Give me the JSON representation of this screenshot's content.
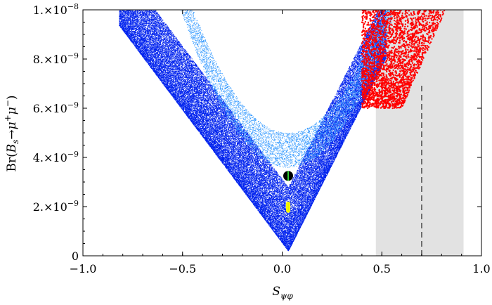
{
  "chart_data": {
    "type": "scatter",
    "title": "",
    "xlabel": "S_{ψφ}",
    "xlabel_display": {
      "main": "S",
      "sub": "ψφ"
    },
    "ylabel": "Br(B_s→μ⁺μ⁻)",
    "ylabel_display": {
      "pre": "Br(",
      "B": "B",
      "s": "s",
      "arrow": "→",
      "mu1": "μ",
      "sup1": "+",
      "mu2": "μ",
      "sup2": "−",
      "post": ")"
    },
    "xlim": [
      -1.0,
      1.0
    ],
    "ylim": [
      0,
      1e-08
    ],
    "grid": false,
    "x_ticks": [
      {
        "value": -1.0,
        "label": "−1.0"
      },
      {
        "value": -0.5,
        "label": "−0.5"
      },
      {
        "value": 0.0,
        "label": "0.0"
      },
      {
        "value": 0.5,
        "label": "0.5"
      },
      {
        "value": 1.0,
        "label": "1.0"
      }
    ],
    "y_ticks": [
      {
        "value": 0,
        "label": "0"
      },
      {
        "value": 2e-09,
        "mant": "2.",
        "exp": "−9"
      },
      {
        "value": 4e-09,
        "mant": "4.",
        "exp": "−9"
      },
      {
        "value": 6e-09,
        "mant": "6.",
        "exp": "−9"
      },
      {
        "value": 8e-09,
        "mant": "8.",
        "exp": "−9"
      },
      {
        "value": 1e-08,
        "mant": "1.",
        "exp": "−8"
      }
    ],
    "shaded_region": {
      "x": [
        0.47,
        0.91
      ],
      "color": "#e2e2e2"
    },
    "dashed_line": {
      "x": 0.7,
      "y": [
        0,
        7e-09
      ],
      "color": "#555555"
    },
    "series": [
      {
        "color": "#0022ee",
        "kind": "v-band",
        "n_points": 55000,
        "center_x": 0.03,
        "min_y": 2e-10,
        "left_slope": 1.08e-08,
        "right_slope": 1.6e-08,
        "band_width": 2.6e-09,
        "x_range": [
          -0.82,
          0.52
        ]
      },
      {
        "color": "#3399ff",
        "kind": "v-band-edge",
        "n_points": 9000,
        "center_x": 0.03,
        "min_y": 3.6e-09,
        "x_range": [
          -0.82,
          0.55
        ]
      },
      {
        "color": "#ff0000",
        "kind": "block",
        "n_points": 2600,
        "x_range": [
          0.4,
          0.8
        ],
        "y_range": [
          6e-09,
          1e-08
        ]
      }
    ],
    "points": [
      {
        "x": 0.03,
        "y": 3.25e-09,
        "color": "#000000",
        "radius": 7
      },
      {
        "x": 0.03,
        "y": 1.98e-09,
        "color": "#ffff00",
        "kind": "pill"
      }
    ],
    "segments": [
      {
        "x": 0.03,
        "y": [
          3.05e-09,
          3.45e-09
        ],
        "color": "#33cc33"
      },
      {
        "x": 0.03,
        "y": [
          1.8e-09,
          2.15e-09
        ],
        "color": "#eeee00"
      }
    ]
  }
}
